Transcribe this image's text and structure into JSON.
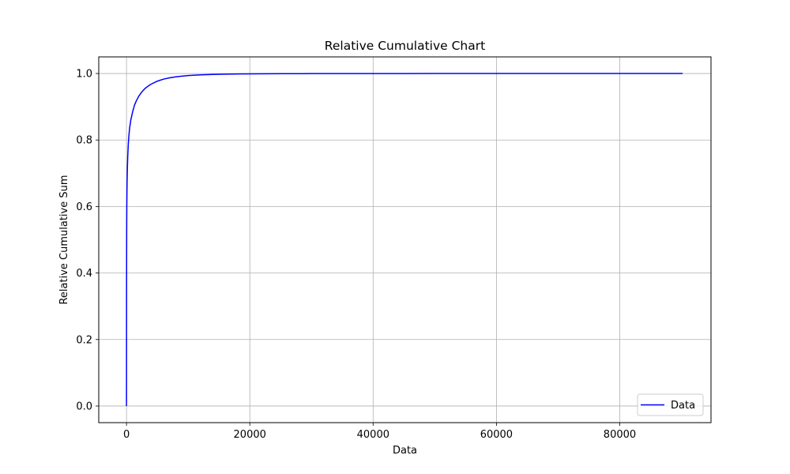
{
  "chart_data": {
    "type": "line",
    "title": "Relative Cumulative Chart",
    "xlabel": "Data",
    "ylabel": "Relative Cumulative Sum",
    "xlim": [
      -4500,
      94800
    ],
    "ylim": [
      -0.05,
      1.05
    ],
    "xticks": [
      0,
      20000,
      40000,
      60000,
      80000
    ],
    "xtick_labels": [
      "0",
      "20000",
      "40000",
      "60000",
      "80000"
    ],
    "yticks": [
      0.0,
      0.2,
      0.4,
      0.6,
      0.8,
      1.0
    ],
    "ytick_labels": [
      "0.0",
      "0.2",
      "0.4",
      "0.6",
      "0.8",
      "1.0"
    ],
    "grid": true,
    "legend": {
      "position": "lower-right"
    },
    "series": [
      {
        "name": "Data",
        "color": "#0000ff",
        "x": [
          0,
          5,
          10,
          20,
          30,
          50,
          75,
          100,
          150,
          200,
          300,
          400,
          500,
          700,
          1000,
          1300,
          1600,
          2000,
          2500,
          3000,
          3500,
          4000,
          5000,
          6000,
          7000,
          8000,
          9000,
          10000,
          12000,
          14000,
          16000,
          18000,
          20000,
          25000,
          30000,
          40000,
          50000,
          60000,
          70000,
          80000,
          90200
        ],
        "y": [
          0.0,
          0.2,
          0.33,
          0.45,
          0.52,
          0.6,
          0.65,
          0.68,
          0.72,
          0.75,
          0.79,
          0.815,
          0.835,
          0.86,
          0.885,
          0.905,
          0.918,
          0.932,
          0.945,
          0.955,
          0.962,
          0.968,
          0.977,
          0.983,
          0.987,
          0.99,
          0.992,
          0.994,
          0.996,
          0.997,
          0.998,
          0.9985,
          0.999,
          0.9995,
          0.9997,
          0.9999,
          1.0,
          1.0,
          1.0,
          1.0,
          1.0
        ]
      }
    ]
  }
}
